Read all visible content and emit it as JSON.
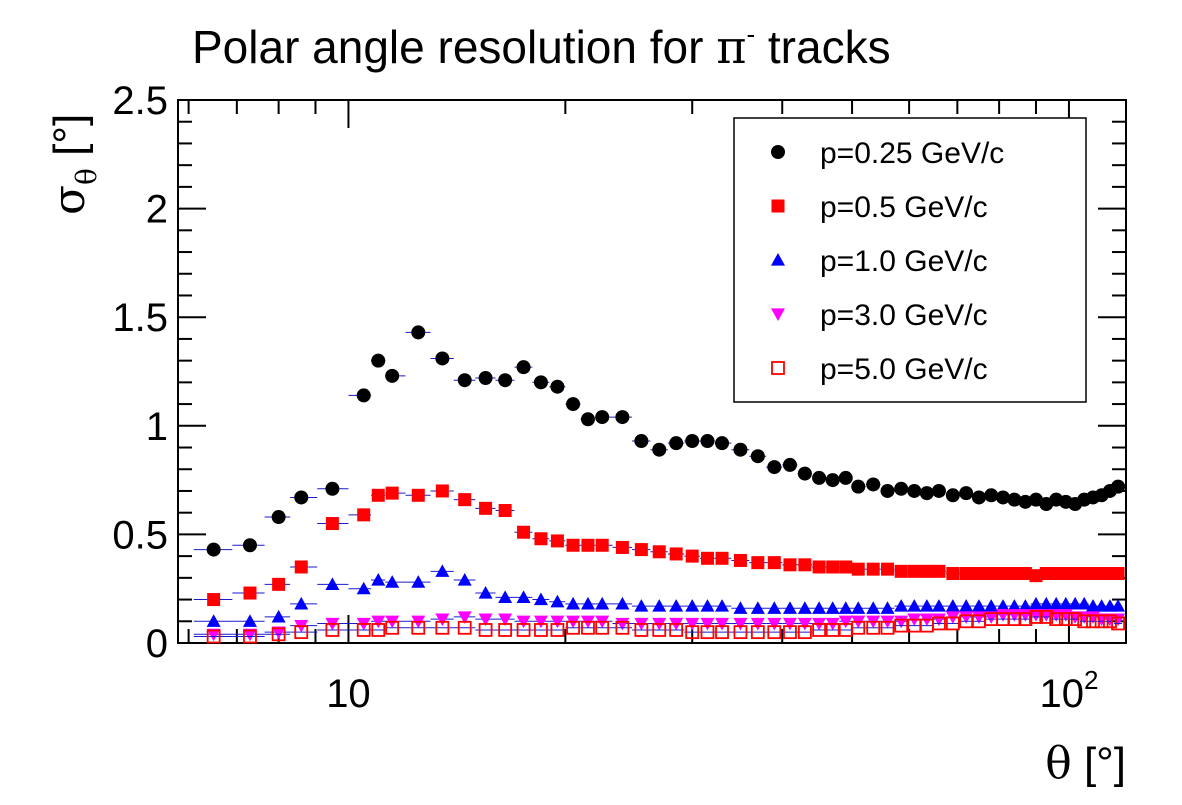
{
  "chart_data": {
    "type": "scatter",
    "title": {
      "prefix": "Polar angle resolution for ",
      "symbol": "π",
      "superscript": "-",
      "suffix": " tracks"
    },
    "xlabel": {
      "symbol": "θ",
      "unit": " [°]"
    },
    "ylabel": {
      "symbol": "σ",
      "subscript": "θ",
      "unit": " [°]"
    },
    "xscale": "log",
    "xlim": [
      5.8,
      120
    ],
    "ylim": [
      0,
      2.5
    ],
    "yticks": [
      0,
      0.5,
      1,
      1.5,
      2,
      2.5
    ],
    "ytick_labels": [
      "0",
      "0.5",
      "1",
      "1.5",
      "2",
      "2.5"
    ],
    "xtick_major": [
      {
        "value": 10,
        "base": "10",
        "exp": ""
      },
      {
        "value": 100,
        "base": "10",
        "exp": "2"
      }
    ],
    "grid": false,
    "legend": {
      "placement": "top-right"
    },
    "colors": {
      "axis": "#000000",
      "error_bar": "#1a1acc"
    },
    "series": [
      {
        "name": "p=0.25 GeV/c",
        "marker": "circle-filled",
        "color": "#000000",
        "x": [
          6.5,
          7.3,
          8.0,
          8.6,
          9.5,
          10.5,
          11.0,
          11.5,
          12.5,
          13.5,
          14.5,
          15.5,
          16.5,
          17.5,
          18.5,
          19.5,
          20.5,
          21.5,
          22.5,
          24.0,
          25.5,
          27.0,
          28.5,
          30.0,
          31.5,
          33.0,
          35.0,
          37.0,
          39.0,
          41.0,
          43.0,
          45.0,
          47.0,
          49.0,
          51.0,
          53.5,
          56.0,
          58.5,
          61.0,
          63.5,
          66.0,
          69.0,
          72.0,
          75.0,
          78.0,
          81.0,
          84.0,
          87.0,
          90.0,
          93.0,
          96.0,
          99.0,
          102.0,
          105.0,
          108.0,
          111.0,
          114.0,
          117.0
        ],
        "y": [
          0.43,
          0.45,
          0.58,
          0.67,
          0.71,
          1.14,
          1.3,
          1.23,
          1.43,
          1.31,
          1.21,
          1.22,
          1.21,
          1.27,
          1.2,
          1.18,
          1.1,
          1.03,
          1.04,
          1.04,
          0.93,
          0.89,
          0.92,
          0.93,
          0.93,
          0.92,
          0.89,
          0.86,
          0.81,
          0.82,
          0.78,
          0.76,
          0.75,
          0.76,
          0.72,
          0.73,
          0.7,
          0.71,
          0.7,
          0.69,
          0.7,
          0.68,
          0.69,
          0.67,
          0.68,
          0.67,
          0.66,
          0.65,
          0.66,
          0.64,
          0.66,
          0.65,
          0.64,
          0.66,
          0.67,
          0.68,
          0.7,
          0.72
        ]
      },
      {
        "name": "p=0.5 GeV/c",
        "marker": "square-filled",
        "color": "#ff0000",
        "x": [
          6.5,
          7.3,
          8.0,
          8.6,
          9.5,
          10.5,
          11.0,
          11.5,
          12.5,
          13.5,
          14.5,
          15.5,
          16.5,
          17.5,
          18.5,
          19.5,
          20.5,
          21.5,
          22.5,
          24.0,
          25.5,
          27.0,
          28.5,
          30.0,
          31.5,
          33.0,
          35.0,
          37.0,
          39.0,
          41.0,
          43.0,
          45.0,
          47.0,
          49.0,
          51.0,
          53.5,
          56.0,
          58.5,
          61.0,
          63.5,
          66.0,
          69.0,
          72.0,
          75.0,
          78.0,
          81.0,
          84.0,
          87.0,
          90.0,
          93.0,
          96.0,
          99.0,
          102.0,
          105.0,
          108.0,
          111.0,
          114.0,
          117.0
        ],
        "y": [
          0.2,
          0.23,
          0.27,
          0.35,
          0.55,
          0.59,
          0.68,
          0.69,
          0.68,
          0.7,
          0.66,
          0.62,
          0.61,
          0.51,
          0.48,
          0.47,
          0.45,
          0.45,
          0.45,
          0.44,
          0.43,
          0.42,
          0.41,
          0.4,
          0.39,
          0.39,
          0.38,
          0.37,
          0.37,
          0.36,
          0.36,
          0.35,
          0.35,
          0.35,
          0.34,
          0.34,
          0.34,
          0.33,
          0.33,
          0.33,
          0.33,
          0.32,
          0.32,
          0.32,
          0.32,
          0.32,
          0.32,
          0.32,
          0.31,
          0.32,
          0.32,
          0.32,
          0.32,
          0.32,
          0.32,
          0.32,
          0.32,
          0.32
        ]
      },
      {
        "name": "p=1.0 GeV/c",
        "marker": "triangle-up-filled",
        "color": "#0000ff",
        "x": [
          6.5,
          7.3,
          8.0,
          8.6,
          9.5,
          10.5,
          11.0,
          11.5,
          12.5,
          13.5,
          14.5,
          15.5,
          16.5,
          17.5,
          18.5,
          19.5,
          20.5,
          21.5,
          22.5,
          24.0,
          25.5,
          27.0,
          28.5,
          30.0,
          31.5,
          33.0,
          35.0,
          37.0,
          39.0,
          41.0,
          43.0,
          45.0,
          47.0,
          49.0,
          51.0,
          53.5,
          56.0,
          58.5,
          61.0,
          63.5,
          66.0,
          69.0,
          72.0,
          75.0,
          78.0,
          81.0,
          84.0,
          87.0,
          90.0,
          93.0,
          96.0,
          99.0,
          102.0,
          105.0,
          108.0,
          111.0,
          114.0,
          117.0
        ],
        "y": [
          0.1,
          0.1,
          0.12,
          0.18,
          0.27,
          0.25,
          0.29,
          0.28,
          0.28,
          0.33,
          0.29,
          0.23,
          0.21,
          0.21,
          0.2,
          0.19,
          0.18,
          0.18,
          0.18,
          0.18,
          0.17,
          0.17,
          0.17,
          0.17,
          0.17,
          0.17,
          0.16,
          0.16,
          0.16,
          0.16,
          0.16,
          0.16,
          0.16,
          0.16,
          0.16,
          0.16,
          0.16,
          0.17,
          0.17,
          0.17,
          0.17,
          0.17,
          0.17,
          0.17,
          0.17,
          0.17,
          0.17,
          0.17,
          0.18,
          0.18,
          0.18,
          0.18,
          0.18,
          0.18,
          0.17,
          0.17,
          0.17,
          0.17
        ]
      },
      {
        "name": "p=3.0 GeV/c",
        "marker": "triangle-down-filled",
        "color": "#ff00ff",
        "x": [
          6.5,
          7.3,
          8.0,
          8.6,
          9.5,
          10.5,
          11.0,
          11.5,
          12.5,
          13.5,
          14.5,
          15.5,
          16.5,
          17.5,
          18.5,
          19.5,
          20.5,
          21.5,
          22.5,
          24.0,
          25.5,
          27.0,
          28.5,
          30.0,
          31.5,
          33.0,
          35.0,
          37.0,
          39.0,
          41.0,
          43.0,
          45.0,
          47.0,
          49.0,
          51.0,
          53.5,
          56.0,
          58.5,
          61.0,
          63.5,
          66.0,
          69.0,
          72.0,
          75.0,
          78.0,
          81.0,
          84.0,
          87.0,
          90.0,
          93.0,
          96.0,
          99.0,
          102.0,
          105.0,
          108.0,
          111.0,
          114.0,
          117.0
        ],
        "y": [
          0.04,
          0.04,
          0.05,
          0.08,
          0.09,
          0.09,
          0.1,
          0.1,
          0.1,
          0.11,
          0.12,
          0.11,
          0.11,
          0.1,
          0.1,
          0.1,
          0.1,
          0.1,
          0.1,
          0.09,
          0.09,
          0.09,
          0.09,
          0.09,
          0.09,
          0.09,
          0.09,
          0.09,
          0.09,
          0.09,
          0.09,
          0.09,
          0.09,
          0.1,
          0.1,
          0.1,
          0.1,
          0.1,
          0.11,
          0.11,
          0.11,
          0.12,
          0.12,
          0.12,
          0.12,
          0.13,
          0.13,
          0.13,
          0.13,
          0.13,
          0.13,
          0.13,
          0.12,
          0.12,
          0.12,
          0.11,
          0.11,
          0.11
        ]
      },
      {
        "name": "p=5.0 GeV/c",
        "marker": "square-open",
        "color": "#ff0000",
        "x": [
          6.5,
          7.3,
          8.0,
          8.6,
          9.5,
          10.5,
          11.0,
          11.5,
          12.5,
          13.5,
          14.5,
          15.5,
          16.5,
          17.5,
          18.5,
          19.5,
          20.5,
          21.5,
          22.5,
          24.0,
          25.5,
          27.0,
          28.5,
          30.0,
          31.5,
          33.0,
          35.0,
          37.0,
          39.0,
          41.0,
          43.0,
          45.0,
          47.0,
          49.0,
          51.0,
          53.5,
          56.0,
          58.5,
          61.0,
          63.5,
          66.0,
          69.0,
          72.0,
          75.0,
          78.0,
          81.0,
          84.0,
          87.0,
          90.0,
          93.0,
          96.0,
          99.0,
          102.0,
          105.0,
          108.0,
          111.0,
          114.0,
          117.0
        ],
        "y": [
          0.03,
          0.03,
          0.04,
          0.05,
          0.06,
          0.06,
          0.06,
          0.07,
          0.07,
          0.07,
          0.07,
          0.06,
          0.06,
          0.06,
          0.06,
          0.06,
          0.07,
          0.07,
          0.07,
          0.07,
          0.06,
          0.06,
          0.06,
          0.05,
          0.05,
          0.05,
          0.05,
          0.05,
          0.05,
          0.05,
          0.05,
          0.06,
          0.06,
          0.06,
          0.07,
          0.07,
          0.07,
          0.08,
          0.08,
          0.08,
          0.09,
          0.09,
          0.1,
          0.1,
          0.11,
          0.11,
          0.11,
          0.11,
          0.12,
          0.12,
          0.11,
          0.11,
          0.11,
          0.1,
          0.1,
          0.1,
          0.1,
          0.09
        ]
      }
    ]
  }
}
